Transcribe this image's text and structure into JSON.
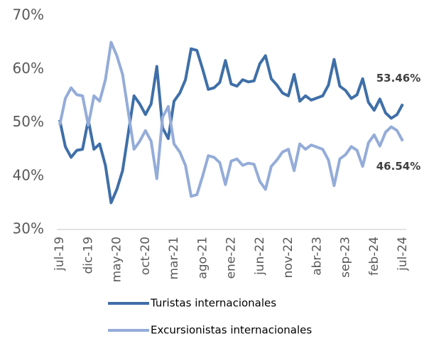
{
  "chart_data": {
    "type": "line",
    "categories": [
      "jul-19",
      null,
      null,
      null,
      null,
      "dic-19",
      null,
      null,
      null,
      null,
      "may-20",
      null,
      null,
      null,
      null,
      "oct-20",
      null,
      null,
      null,
      null,
      "mar-21",
      null,
      null,
      null,
      null,
      "ago-21",
      null,
      null,
      null,
      null,
      "ene-22",
      null,
      null,
      null,
      null,
      "jun-22",
      null,
      null,
      null,
      null,
      "nov-22",
      null,
      null,
      null,
      null,
      "abr-23",
      null,
      null,
      null,
      null,
      "sep-23",
      null,
      null,
      null,
      null,
      "feb-24",
      null,
      null,
      null,
      null,
      "jul-24"
    ],
    "series": [
      {
        "name": "Turistas internacionales",
        "color": "#3f6fa8",
        "values": [
          50.5,
          45.5,
          43.5,
          44.8,
          45,
          50.5,
          45,
          46,
          42,
          35,
          37.5,
          41,
          48,
          55,
          53.5,
          51.5,
          53.5,
          60.5,
          49,
          47,
          54,
          55.5,
          58,
          63.8,
          63.5,
          60,
          56.2,
          56.5,
          57.5,
          61.6,
          57.2,
          56.8,
          58,
          57.6,
          57.8,
          61,
          62.5,
          58.2,
          57,
          55.5,
          55,
          59,
          54,
          55,
          54.2,
          54.6,
          55,
          57,
          61.8,
          56.8,
          56,
          54.5,
          55.2,
          58.2,
          53.8,
          52.3,
          54.4,
          51.8,
          50.8,
          51.5,
          53.46
        ],
        "value_labels": [
          null,
          null,
          null,
          null,
          null,
          null,
          null,
          null,
          null,
          null,
          null,
          null,
          null,
          null,
          null,
          null,
          null,
          null,
          null,
          null,
          null,
          null,
          null,
          null,
          null,
          null,
          null,
          null,
          null,
          null,
          null,
          null,
          null,
          null,
          null,
          null,
          null,
          null,
          null,
          null,
          null,
          null,
          null,
          null,
          null,
          null,
          null,
          null,
          null,
          null,
          null,
          null,
          null,
          null,
          null,
          null,
          null,
          null,
          null,
          null,
          "53.46%"
        ]
      },
      {
        "name": "Excursionistas internacionales",
        "color": "#94acd8",
        "values": [
          49.5,
          54.5,
          56.5,
          55.2,
          55,
          49.5,
          55,
          54,
          58,
          65,
          62.5,
          59,
          52,
          45,
          46.5,
          48.5,
          46.5,
          39.5,
          51,
          53,
          46,
          44.5,
          42,
          36.2,
          36.5,
          40,
          43.8,
          43.5,
          42.5,
          38.4,
          42.8,
          43.2,
          42,
          42.4,
          42.2,
          39,
          37.5,
          41.8,
          43,
          44.5,
          45,
          41,
          46,
          45,
          45.8,
          45.4,
          45,
          43,
          38.2,
          43.2,
          44,
          45.5,
          44.8,
          41.8,
          46.2,
          47.7,
          45.6,
          48.2,
          49.2,
          48.5,
          46.54
        ],
        "value_labels": [
          null,
          null,
          null,
          null,
          null,
          null,
          null,
          null,
          null,
          null,
          null,
          null,
          null,
          null,
          null,
          null,
          null,
          null,
          null,
          null,
          null,
          null,
          null,
          null,
          null,
          null,
          null,
          null,
          null,
          null,
          null,
          null,
          null,
          null,
          null,
          null,
          null,
          null,
          null,
          null,
          null,
          null,
          null,
          null,
          null,
          null,
          null,
          null,
          null,
          null,
          null,
          null,
          null,
          null,
          null,
          null,
          null,
          null,
          null,
          null,
          "46.54%"
        ]
      }
    ],
    "ylim": [
      30,
      70
    ],
    "yticks": [
      {
        "value": 30,
        "label": "30%"
      },
      {
        "value": 40,
        "label": "40%"
      },
      {
        "value": 50,
        "label": "50%"
      },
      {
        "value": 60,
        "label": "60%"
      },
      {
        "value": 70,
        "label": "70%"
      }
    ],
    "grid": false,
    "legend": "bottom"
  }
}
